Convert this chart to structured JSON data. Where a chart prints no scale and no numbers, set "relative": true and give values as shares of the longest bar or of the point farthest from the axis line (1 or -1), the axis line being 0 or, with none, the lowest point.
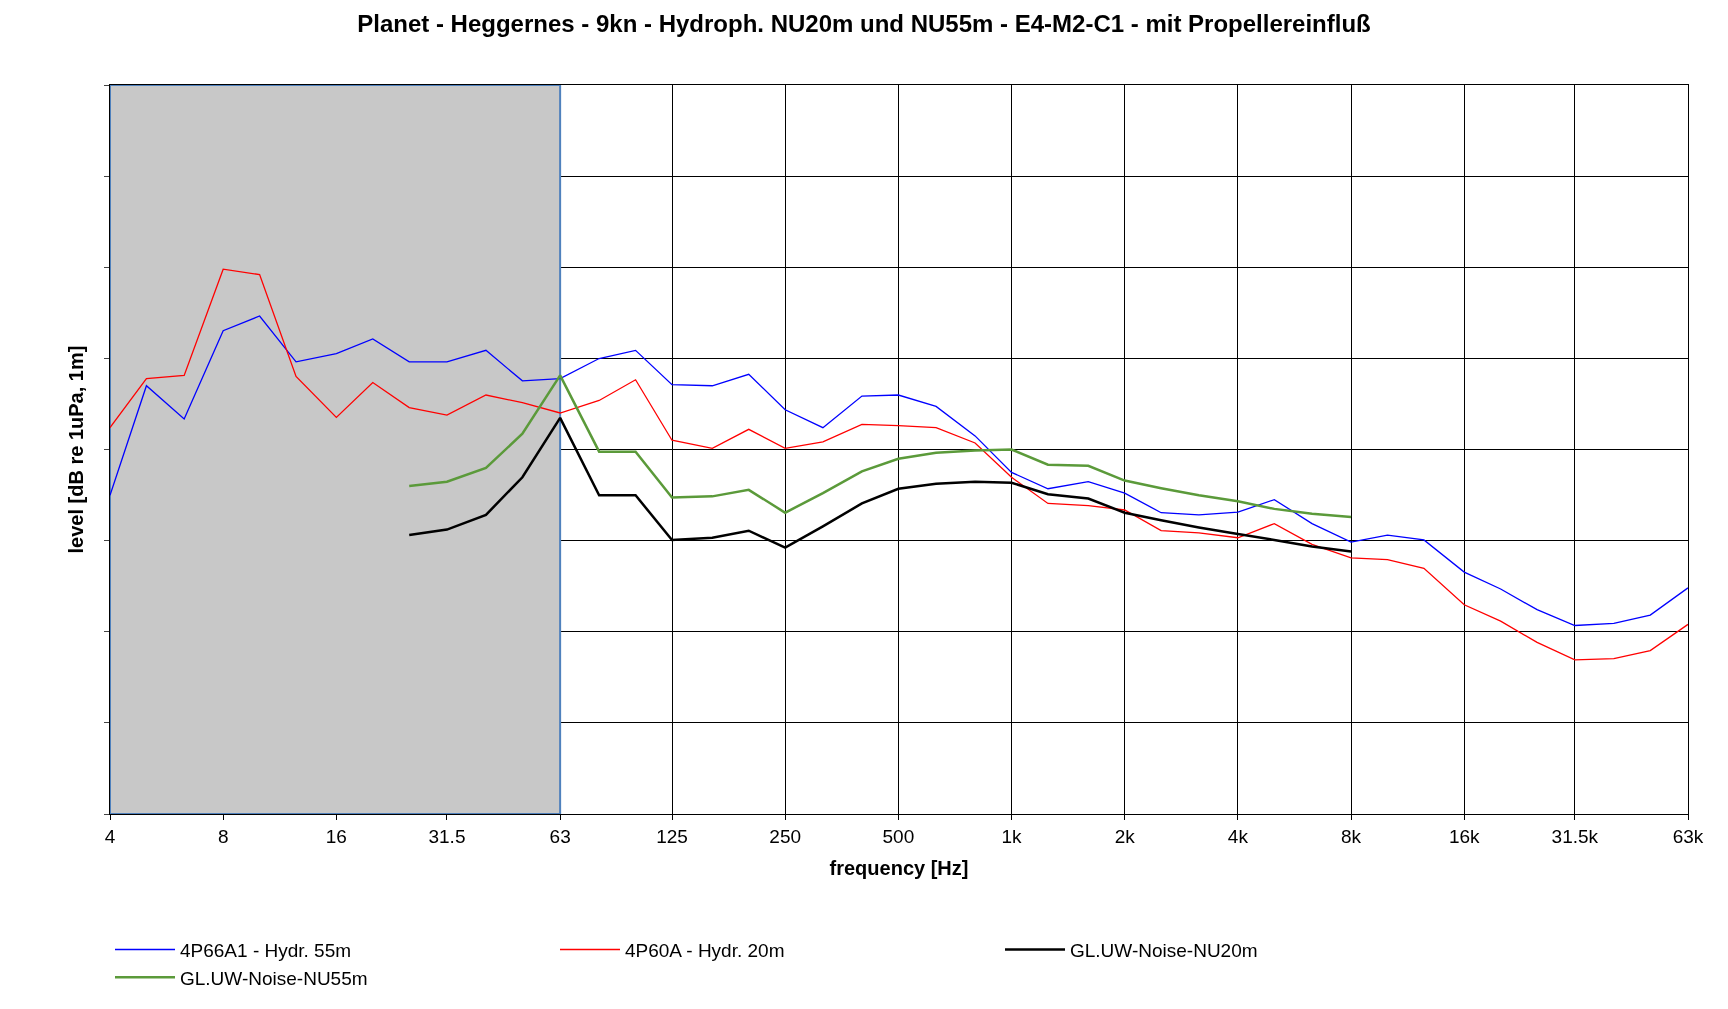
{
  "chart_data": {
    "type": "line",
    "title": "Planet - Heggernes - 9kn - Hydroph. NU20m und NU55m - E4-M2-C1 - mit Propellereinfluß",
    "xlabel": "frequency [Hz]",
    "ylabel": "level [dB re 1uPa, 1m]",
    "relative": true,
    "log": "x",
    "grid": true,
    "legend": "bottom",
    "marker": "none",
    "line_style": "solid",
    "xlim": [
      4,
      63000
    ],
    "xticks": [
      4,
      8,
      16,
      31.5,
      63,
      125,
      250,
      500,
      {
        "value": 1000,
        "label": "1k"
      },
      {
        "value": 2000,
        "label": "2k"
      },
      {
        "value": 4000,
        "label": "4k"
      },
      {
        "value": 8000,
        "label": "8k"
      },
      {
        "value": 16000,
        "label": "16k"
      },
      {
        "value": 31500,
        "label": "31.5k"
      },
      {
        "value": 63000,
        "label": "63k"
      }
    ],
    "x": [
      4,
      5,
      6.3,
      8,
      10,
      12.5,
      16,
      20,
      25,
      31.5,
      40,
      50,
      63,
      80,
      100,
      125,
      160,
      200,
      250,
      315,
      400,
      500,
      630,
      800,
      1000,
      1250,
      1600,
      2000,
      2500,
      3150,
      4000,
      5000,
      6300,
      8000,
      10000,
      12500,
      16000,
      20000,
      25000,
      31500,
      40000,
      50000,
      63000
    ],
    "bands": [
      {
        "axis": "x",
        "from": 4,
        "to": 63,
        "color": "#c8c8c8"
      }
    ],
    "series": [
      {
        "name": "4P66A1 - Hydr. 55m",
        "color": "#0000ff",
        "values": [
          0.585,
          0.786,
          0.725,
          0.887,
          0.914,
          0.83,
          0.845,
          0.872,
          0.83,
          0.83,
          0.851,
          0.795,
          0.799,
          0.836,
          0.851,
          0.788,
          0.786,
          0.807,
          0.742,
          0.709,
          0.767,
          0.769,
          0.748,
          0.694,
          0.627,
          0.597,
          0.61,
          0.589,
          0.553,
          0.549,
          0.554,
          0.577,
          0.533,
          0.499,
          0.512,
          0.503,
          0.444,
          0.413,
          0.375,
          0.346,
          0.35,
          0.365,
          0.415
        ]
      },
      {
        "name": "4P60A - Hydr. 20m",
        "color": "#ff0000",
        "values": [
          0.709,
          0.799,
          0.805,
          1,
          0.99,
          0.803,
          0.728,
          0.792,
          0.746,
          0.732,
          0.769,
          0.755,
          0.736,
          0.759,
          0.797,
          0.686,
          0.671,
          0.706,
          0.671,
          0.683,
          0.715,
          0.713,
          0.709,
          0.681,
          0.618,
          0.57,
          0.566,
          0.558,
          0.52,
          0.516,
          0.507,
          0.533,
          0.495,
          0.47,
          0.467,
          0.451,
          0.384,
          0.354,
          0.315,
          0.283,
          0.285,
          0.3,
          0.348
        ]
      },
      {
        "name": "GL.UW-Noise-NU20m",
        "color": "#000000",
        "x": [
          25,
          31.5,
          40,
          50,
          63,
          80,
          100,
          125,
          160,
          200,
          250,
          315,
          400,
          500,
          630,
          800,
          1000,
          1250,
          1600,
          2000,
          2500,
          3150,
          4000,
          5000,
          6300,
          8000
        ],
        "values": [
          0.512,
          0.522,
          0.549,
          0.618,
          0.727,
          0.585,
          0.585,
          0.503,
          0.507,
          0.52,
          0.489,
          0.528,
          0.57,
          0.597,
          0.606,
          0.61,
          0.608,
          0.587,
          0.579,
          0.553,
          0.539,
          0.526,
          0.514,
          0.503,
          0.491,
          0.482
        ]
      },
      {
        "name": "GL.UW-Noise-NU55m",
        "color": "#5b9a3a",
        "x": [
          25,
          31.5,
          40,
          50,
          63,
          80,
          100,
          125,
          160,
          200,
          250,
          315,
          400,
          500,
          630,
          800,
          1000,
          1250,
          1600,
          2000,
          2500,
          3150,
          4000,
          5000,
          6300,
          8000
        ],
        "values": [
          0.602,
          0.61,
          0.635,
          0.698,
          0.805,
          0.665,
          0.665,
          0.581,
          0.583,
          0.595,
          0.553,
          0.589,
          0.629,
          0.652,
          0.663,
          0.667,
          0.669,
          0.641,
          0.639,
          0.612,
          0.598,
          0.585,
          0.574,
          0.56,
          0.551,
          0.545
        ]
      }
    ]
  }
}
